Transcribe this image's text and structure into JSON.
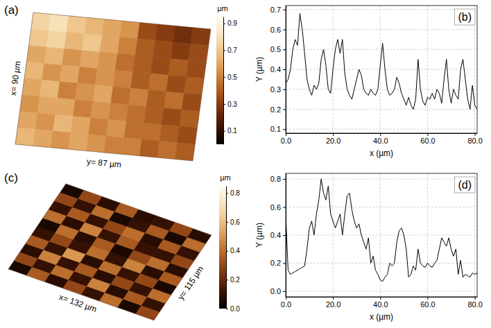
{
  "chart_data": [
    {
      "type": "heatmap",
      "label": "(a)",
      "x_label": "x= 90 µm",
      "y_label": "y= 87 µm",
      "colorbar_title": "µm",
      "colorbar_range": [
        0,
        0.95
      ],
      "colorbar_ticks": [
        0.1,
        0.3,
        0.5,
        0.7,
        0.9
      ],
      "cells": [
        [
          0.75,
          0.8,
          0.7,
          0.65,
          0.6,
          0.55,
          0.35,
          0.3,
          0.25,
          0.3
        ],
        [
          0.7,
          0.75,
          0.65,
          0.7,
          0.6,
          0.5,
          0.4,
          0.35,
          0.3,
          0.35
        ],
        [
          0.6,
          0.65,
          0.55,
          0.6,
          0.55,
          0.45,
          0.4,
          0.35,
          0.4,
          0.35
        ],
        [
          0.65,
          0.55,
          0.6,
          0.5,
          0.55,
          0.5,
          0.4,
          0.45,
          0.35,
          0.4
        ],
        [
          0.6,
          0.65,
          0.5,
          0.55,
          0.6,
          0.45,
          0.5,
          0.4,
          0.45,
          0.35
        ],
        [
          0.55,
          0.6,
          0.6,
          0.5,
          0.55,
          0.5,
          0.45,
          0.4,
          0.35,
          0.4
        ],
        [
          0.6,
          0.55,
          0.65,
          0.6,
          0.5,
          0.55,
          0.45,
          0.45,
          0.4,
          0.35
        ],
        [
          0.65,
          0.6,
          0.55,
          0.6,
          0.55,
          0.5,
          0.5,
          0.4,
          0.45,
          0.4
        ]
      ]
    },
    {
      "type": "line",
      "label": "(b)",
      "x_label": "x (µm)",
      "y_label": "Y (µm)",
      "color": "#000000",
      "grid": true,
      "xlim": [
        0,
        81
      ],
      "ylim": [
        0.08,
        0.72
      ],
      "xticks": [
        {
          "value": 0,
          "label": "0.0"
        },
        {
          "value": 20,
          "label": "20.0"
        },
        {
          "value": 40,
          "label": "40.0"
        },
        {
          "value": 60,
          "label": "60.0"
        },
        {
          "value": 80,
          "label": "80.0"
        }
      ],
      "yticks": [
        0.1,
        0.2,
        0.3,
        0.4,
        0.5,
        0.6,
        0.7
      ],
      "x": [
        0,
        1,
        2,
        3,
        4,
        5,
        6,
        7,
        8,
        9,
        10,
        11,
        12,
        13,
        14,
        15,
        16,
        17,
        18,
        19,
        20,
        21,
        22,
        23,
        24,
        25,
        26,
        27,
        28,
        29,
        30,
        31,
        32,
        33,
        34,
        35,
        36,
        37,
        38,
        39,
        40,
        41,
        42,
        43,
        44,
        45,
        46,
        47,
        48,
        49,
        50,
        51,
        52,
        53,
        54,
        55,
        56,
        57,
        58,
        59,
        60,
        61,
        62,
        63,
        64,
        65,
        66,
        67,
        68,
        69,
        70,
        71,
        72,
        73,
        74,
        75,
        76,
        77,
        78,
        79,
        80,
        81
      ],
      "values": [
        0.33,
        0.35,
        0.4,
        0.5,
        0.55,
        0.52,
        0.68,
        0.6,
        0.48,
        0.35,
        0.3,
        0.27,
        0.32,
        0.3,
        0.33,
        0.45,
        0.5,
        0.42,
        0.3,
        0.28,
        0.4,
        0.5,
        0.55,
        0.48,
        0.55,
        0.38,
        0.3,
        0.27,
        0.25,
        0.3,
        0.35,
        0.4,
        0.37,
        0.3,
        0.28,
        0.27,
        0.3,
        0.28,
        0.27,
        0.3,
        0.42,
        0.53,
        0.4,
        0.3,
        0.27,
        0.28,
        0.3,
        0.36,
        0.33,
        0.28,
        0.25,
        0.22,
        0.26,
        0.22,
        0.2,
        0.25,
        0.45,
        0.3,
        0.24,
        0.22,
        0.26,
        0.25,
        0.28,
        0.25,
        0.3,
        0.28,
        0.23,
        0.35,
        0.45,
        0.3,
        0.23,
        0.3,
        0.27,
        0.25,
        0.4,
        0.45,
        0.35,
        0.25,
        0.2,
        0.32,
        0.22,
        0.2
      ]
    },
    {
      "type": "heatmap",
      "label": "(c)",
      "x_label": "x= 132 µm",
      "y_label": "y= 115 µm",
      "colorbar_title": "µm",
      "colorbar_range": [
        0,
        0.85
      ],
      "colorbar_ticks": [
        {
          "value": 0,
          "label": "0.0"
        },
        0.2,
        0.4,
        0.6,
        0.8
      ],
      "cells": [
        [
          0.05,
          0.3,
          0.08,
          0.35,
          0.1,
          0.05,
          0.4,
          0.1,
          0.3,
          0.05
        ],
        [
          0.35,
          0.1,
          0.45,
          0.1,
          0.3,
          0.4,
          0.08,
          0.35,
          0.1,
          0.3
        ],
        [
          0.08,
          0.4,
          0.1,
          0.5,
          0.1,
          0.08,
          0.45,
          0.1,
          0.4,
          0.08
        ],
        [
          0.3,
          0.1,
          0.35,
          0.08,
          0.4,
          0.35,
          0.1,
          0.3,
          0.05,
          0.35
        ],
        [
          0.1,
          0.45,
          0.08,
          0.4,
          0.1,
          0.05,
          0.35,
          0.4,
          0.1,
          0.08
        ],
        [
          0.4,
          0.08,
          0.3,
          0.1,
          0.45,
          0.3,
          0.1,
          0.08,
          0.35,
          0.1
        ],
        [
          0.05,
          0.35,
          0.1,
          0.3,
          0.08,
          0.4,
          0.1,
          0.35,
          0.05,
          0.3
        ],
        [
          0.3,
          0.1,
          0.4,
          0.05,
          0.35,
          0.08,
          0.3,
          0.1,
          0.4,
          0.08
        ]
      ]
    },
    {
      "type": "line",
      "label": "(d)",
      "x_label": "x (µm)",
      "y_label": "Y (µm)",
      "color": "#000000",
      "grid": true,
      "xlim": [
        0,
        81
      ],
      "ylim": [
        -0.04,
        0.84
      ],
      "xticks": [
        {
          "value": 0,
          "label": "0.0"
        },
        {
          "value": 20,
          "label": "20.0"
        },
        {
          "value": 40,
          "label": "40.0"
        },
        {
          "value": 60,
          "label": "60.0"
        },
        {
          "value": 80,
          "label": "80.0"
        }
      ],
      "yticks": [
        {
          "value": 0,
          "label": "0.0"
        },
        0.2,
        0.4,
        0.6,
        0.8
      ],
      "x": [
        0,
        1,
        2,
        3,
        4,
        5,
        6,
        7,
        8,
        9,
        10,
        11,
        12,
        13,
        14,
        15,
        16,
        17,
        18,
        19,
        20,
        21,
        22,
        23,
        24,
        25,
        26,
        27,
        28,
        29,
        30,
        31,
        32,
        33,
        34,
        35,
        36,
        37,
        38,
        39,
        40,
        41,
        42,
        43,
        44,
        45,
        46,
        47,
        48,
        49,
        50,
        51,
        52,
        53,
        54,
        55,
        56,
        57,
        58,
        59,
        60,
        61,
        62,
        63,
        64,
        65,
        66,
        67,
        68,
        69,
        70,
        71,
        72,
        73,
        74,
        75,
        76,
        77,
        78,
        79,
        80,
        81
      ],
      "values": [
        0.55,
        0.15,
        0.12,
        0.13,
        0.14,
        0.15,
        0.16,
        0.17,
        0.18,
        0.3,
        0.45,
        0.5,
        0.4,
        0.55,
        0.65,
        0.8,
        0.7,
        0.65,
        0.75,
        0.55,
        0.5,
        0.45,
        0.5,
        0.55,
        0.4,
        0.55,
        0.68,
        0.7,
        0.58,
        0.5,
        0.45,
        0.48,
        0.4,
        0.35,
        0.3,
        0.38,
        0.2,
        0.25,
        0.15,
        0.12,
        0.08,
        0.07,
        0.1,
        0.12,
        0.2,
        0.18,
        0.2,
        0.35,
        0.43,
        0.45,
        0.4,
        0.3,
        0.1,
        0.12,
        0.18,
        0.15,
        0.3,
        0.2,
        0.18,
        0.17,
        0.2,
        0.18,
        0.17,
        0.2,
        0.22,
        0.3,
        0.38,
        0.35,
        0.32,
        0.38,
        0.3,
        0.25,
        0.3,
        0.12,
        0.22,
        0.1,
        0.12,
        0.11,
        0.1,
        0.13,
        0.12,
        0.13
      ]
    }
  ]
}
